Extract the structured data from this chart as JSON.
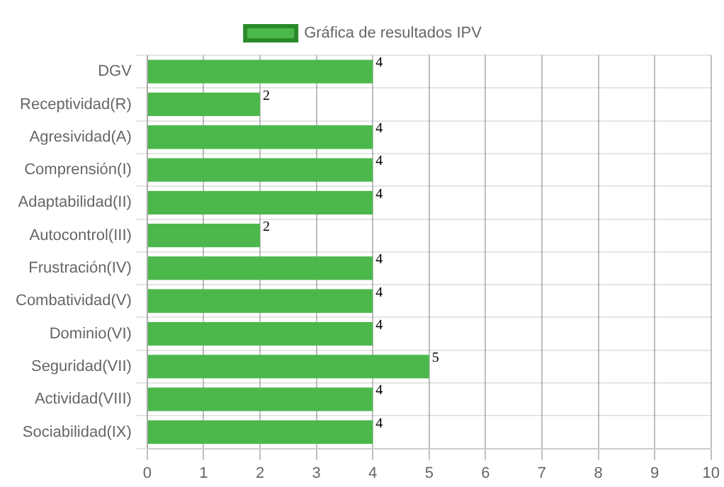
{
  "chart_data": {
    "type": "bar",
    "orientation": "horizontal",
    "categories": [
      "DGV",
      "Receptividad(R)",
      "Agresividad(A)",
      "Comprensión(I)",
      "Adaptabilidad(II)",
      "Autocontrol(III)",
      "Frustración(IV)",
      "Combatividad(V)",
      "Dominio(VI)",
      "Seguridad(VII)",
      "Actividad(VIII)",
      "Sociabilidad(IX)"
    ],
    "series": [
      {
        "name": "Gráfica de resultados IPV",
        "color": "#4cb84c",
        "values": [
          4,
          2,
          4,
          4,
          4,
          2,
          4,
          4,
          4,
          5,
          4,
          4
        ]
      }
    ],
    "xlim": [
      0,
      10
    ],
    "xticks": [
      0,
      1,
      2,
      3,
      4,
      5,
      6,
      7,
      8,
      9,
      10
    ],
    "grid": true,
    "legend": "top",
    "data_labels": true
  }
}
